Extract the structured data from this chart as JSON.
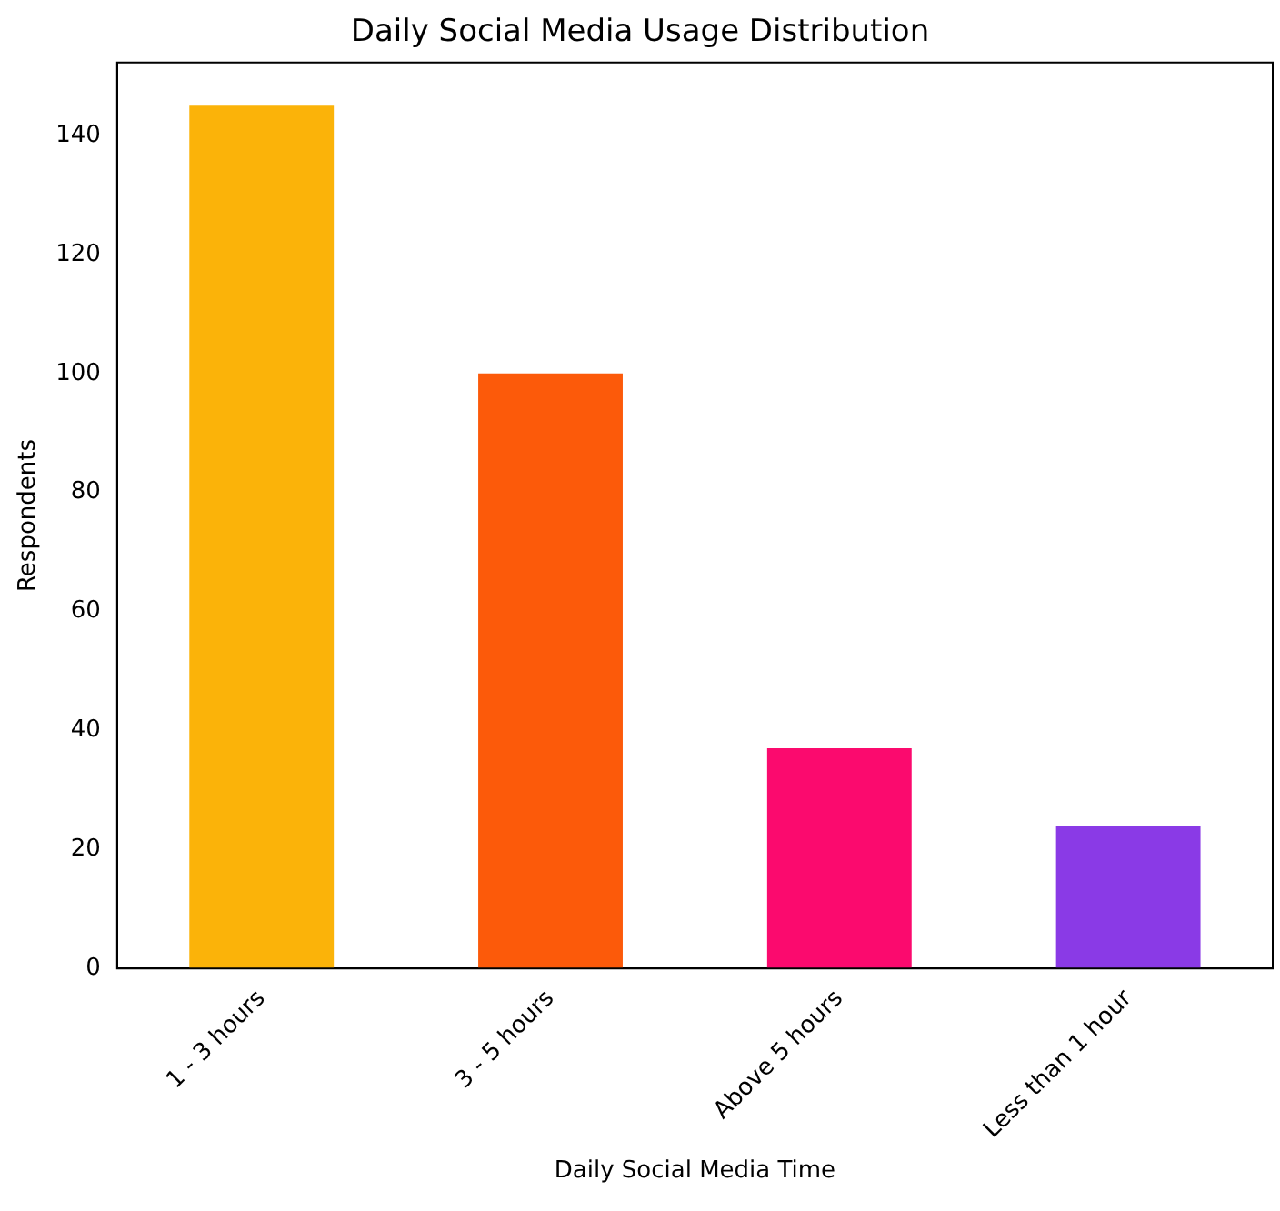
{
  "chart_data": {
    "type": "bar",
    "title": "Daily Social Media Usage Distribution",
    "xlabel": "Daily Social Media Time",
    "ylabel": "Respondents",
    "categories": [
      "1 - 3 hours",
      "3 - 5 hours",
      "Above 5 hours",
      "Less than 1 hour"
    ],
    "values": [
      145,
      100,
      37,
      24
    ],
    "colors": [
      "#fbb309",
      "#fc5a0a",
      "#fb0a6e",
      "#8a3ae6"
    ],
    "ylim": [
      0,
      152.25
    ],
    "yticks": [
      0,
      20,
      40,
      60,
      80,
      100,
      120,
      140
    ],
    "grid": false,
    "legend": false
  }
}
